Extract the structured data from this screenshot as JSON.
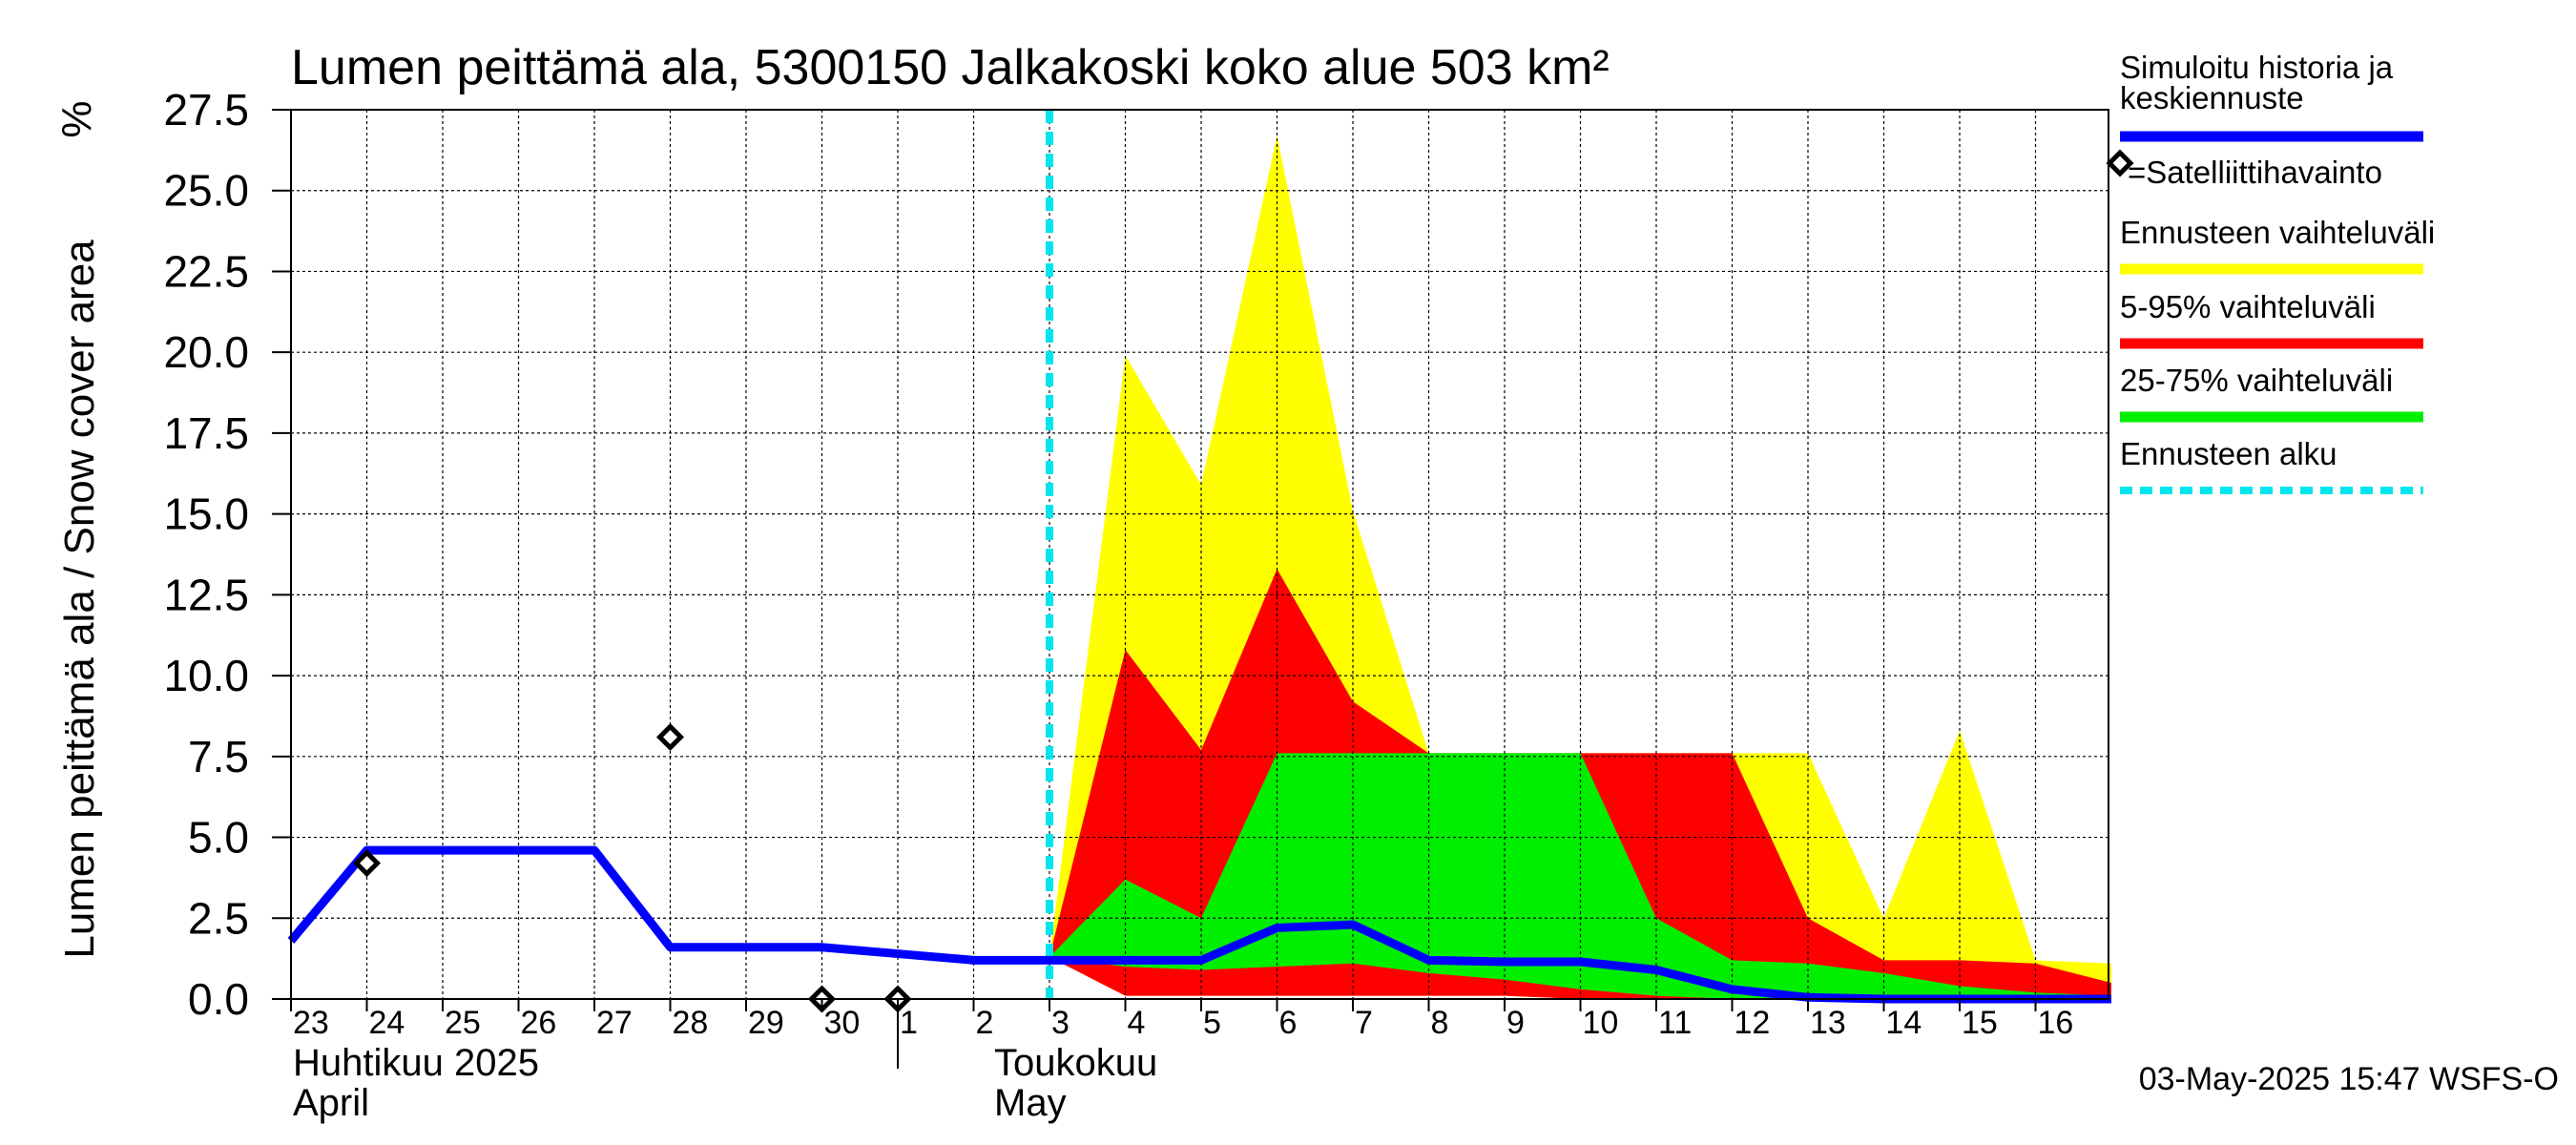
{
  "chart_data": {
    "type": "area",
    "title": "Lumen peittämä ala, 5300150 Jalkakoski koko alue 503 km²",
    "ylabel": "Lumen peittämä ala / Snow cover area",
    "yunit": "%",
    "ylim": [
      0,
      27.5
    ],
    "yticks": [
      "0.0",
      "2.5",
      "5.0",
      "7.5",
      "10.0",
      "12.5",
      "15.0",
      "17.5",
      "20.0",
      "22.5",
      "25.0",
      "27.5"
    ],
    "x_start": "2025-04-23",
    "x_end": "2025-05-17",
    "day_labels": [
      "23",
      "24",
      "25",
      "26",
      "27",
      "28",
      "29",
      "30",
      "1",
      "2",
      "3",
      "4",
      "5",
      "6",
      "7",
      "8",
      "9",
      "10",
      "11",
      "12",
      "13",
      "14",
      "15",
      "16"
    ],
    "month_labels": [
      {
        "fi": "Huhtikuu  2025",
        "en": "April"
      },
      {
        "fi": "Toukokuu",
        "en": "May"
      }
    ],
    "grid": true,
    "forecast_start": "2025-05-03",
    "series": [
      {
        "name": "Ennusteen vaihteluväli",
        "color": "#ffff00",
        "x": [
          "2025-05-03",
          "2025-05-04",
          "2025-05-05",
          "2025-05-06",
          "2025-05-07",
          "2025-05-08",
          "2025-05-09",
          "2025-05-10",
          "2025-05-11",
          "2025-05-12",
          "2025-05-13",
          "2025-05-14",
          "2025-05-15",
          "2025-05-16",
          "2025-05-17"
        ],
        "upper": [
          1.3,
          19.9,
          15.9,
          26.7,
          15.1,
          7.6,
          7.6,
          7.6,
          7.6,
          7.6,
          7.6,
          2.5,
          8.3,
          1.2,
          1.1
        ],
        "lower": [
          1.3,
          0.1,
          0.1,
          0.1,
          0.1,
          0.1,
          0.1,
          0.0,
          0.0,
          0.0,
          0.0,
          0.0,
          0.0,
          0.0,
          0.0
        ]
      },
      {
        "name": "5-95% vaihteluväli",
        "color": "#ff0000",
        "x": [
          "2025-05-03",
          "2025-05-04",
          "2025-05-05",
          "2025-05-06",
          "2025-05-07",
          "2025-05-08",
          "2025-05-09",
          "2025-05-10",
          "2025-05-11",
          "2025-05-12",
          "2025-05-13",
          "2025-05-14",
          "2025-05-15",
          "2025-05-16",
          "2025-05-17"
        ],
        "upper": [
          1.3,
          10.8,
          7.7,
          13.3,
          9.2,
          7.6,
          7.6,
          7.6,
          7.6,
          7.6,
          2.5,
          1.2,
          1.2,
          1.1,
          0.5
        ],
        "lower": [
          1.3,
          0.1,
          0.1,
          0.1,
          0.1,
          0.1,
          0.1,
          0.0,
          0.0,
          0.0,
          0.0,
          0.0,
          0.0,
          0.0,
          0.0
        ]
      },
      {
        "name": "25-75% vaihteluväli",
        "color": "#00ee00",
        "x": [
          "2025-05-03",
          "2025-05-04",
          "2025-05-05",
          "2025-05-06",
          "2025-05-07",
          "2025-05-08",
          "2025-05-09",
          "2025-05-10",
          "2025-05-11",
          "2025-05-12",
          "2025-05-13",
          "2025-05-14",
          "2025-05-15",
          "2025-05-16",
          "2025-05-17"
        ],
        "upper": [
          1.3,
          3.7,
          2.5,
          7.6,
          7.6,
          7.6,
          7.6,
          7.6,
          2.5,
          1.2,
          1.1,
          0.8,
          0.4,
          0.2,
          0.1
        ],
        "lower": [
          1.3,
          1.0,
          0.9,
          1.0,
          1.1,
          0.8,
          0.6,
          0.3,
          0.1,
          0.0,
          0.0,
          0.0,
          0.0,
          0.0,
          0.0
        ]
      },
      {
        "name": "Simuloitu historia ja keskiennuste",
        "color": "#0000ff",
        "x": [
          "2025-04-23",
          "2025-04-24",
          "2025-04-25",
          "2025-04-26",
          "2025-04-27",
          "2025-04-28",
          "2025-04-29",
          "2025-04-30",
          "2025-05-01",
          "2025-05-02",
          "2025-05-03",
          "2025-05-04",
          "2025-05-05",
          "2025-05-06",
          "2025-05-07",
          "2025-05-08",
          "2025-05-09",
          "2025-05-10",
          "2025-05-11",
          "2025-05-12",
          "2025-05-13",
          "2025-05-14",
          "2025-05-15",
          "2025-05-16",
          "2025-05-17"
        ],
        "values": [
          1.8,
          4.6,
          4.6,
          4.6,
          4.6,
          1.6,
          1.6,
          1.6,
          1.4,
          1.2,
          1.2,
          1.2,
          1.2,
          2.2,
          2.3,
          1.2,
          1.15,
          1.15,
          0.9,
          0.3,
          0.05,
          0.0,
          0.0,
          0.0,
          0.0
        ]
      }
    ],
    "satellite_observations": {
      "name": "=Satelliittihavainto",
      "x": [
        "2025-04-24",
        "2025-04-28",
        "2025-04-30",
        "2025-05-01"
      ],
      "values": [
        4.2,
        8.1,
        0.0,
        0.0
      ]
    },
    "legend": {
      "placement": "right",
      "items": [
        {
          "label": "Simuloitu historia ja keskiennuste",
          "lines": [
            "Simuloitu historia ja",
            "keskiennuste"
          ],
          "color": "#0000ff",
          "style": "line"
        },
        {
          "label": "=Satelliittihavainto",
          "lines": [
            "=Satelliittihavainto"
          ],
          "color": "#000000",
          "style": "diamond"
        },
        {
          "label": "Ennusteen vaihteluväli",
          "lines": [
            "Ennusteen vaihteluväli"
          ],
          "color": "#ffff00",
          "style": "line"
        },
        {
          "label": "5-95% vaihteluväli",
          "lines": [
            "5-95% vaihteluväli"
          ],
          "color": "#ff0000",
          "style": "line"
        },
        {
          "label": "25-75% vaihteluväli",
          "lines": [
            "25-75% vaihteluväli"
          ],
          "color": "#00ee00",
          "style": "line"
        },
        {
          "label": "Ennusteen alku",
          "lines": [
            "Ennusteen alku"
          ],
          "color": "#00e5ee",
          "style": "dashed"
        }
      ]
    },
    "footer": "03-May-2025 15:47 WSFS-O",
    "colors": {
      "forecast_start_line": "#00e5ee",
      "grid": "#000000"
    }
  }
}
